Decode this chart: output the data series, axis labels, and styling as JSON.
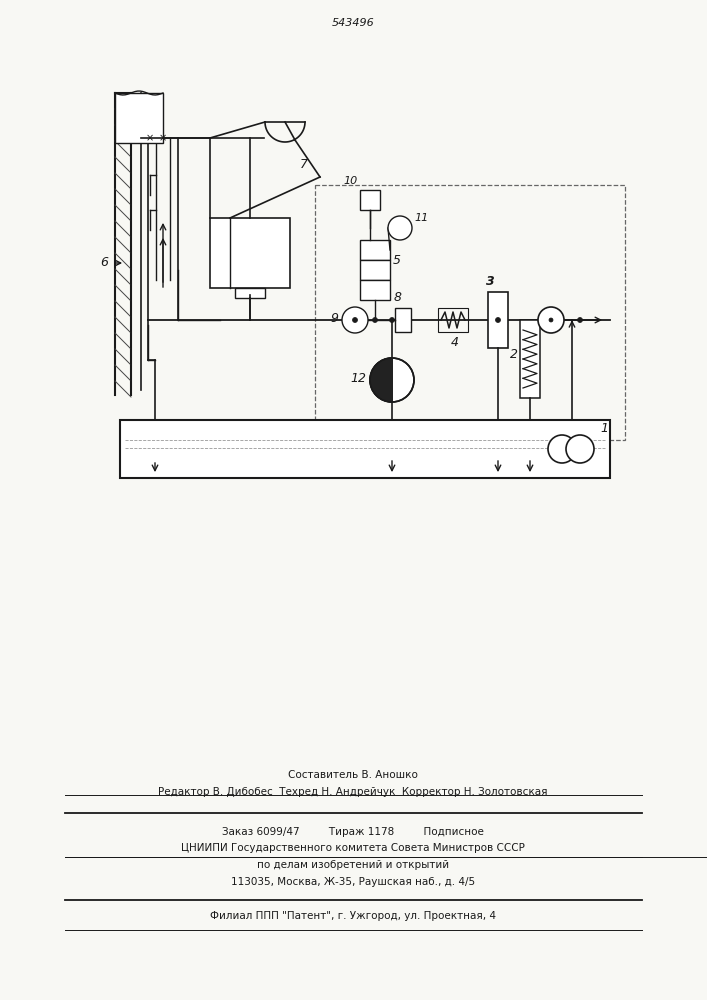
{
  "bg_color": "#f8f8f4",
  "line_color": "#1a1a1a",
  "title_text": "543496",
  "bottom_text1": "Составитель В. Аношко",
  "bottom_text2": "Редактор В. Дибобес  Техред Н. Андрейчук  Корректор Н. Золотовская",
  "bottom_text3": "Заказ 6099/47         Тираж 1178         Подписное",
  "bottom_text4": "ЦНИИПИ Государственного комитета Совета Министров СССР",
  "bottom_text5": "по делам изобретений и открытий",
  "bottom_text6": "113035, Москва, Ж-35, Раушская наб., д. 4/5",
  "bottom_text7": "Филиал ППП \"Патент\", г. Ужгород, ул. Проектная, 4"
}
